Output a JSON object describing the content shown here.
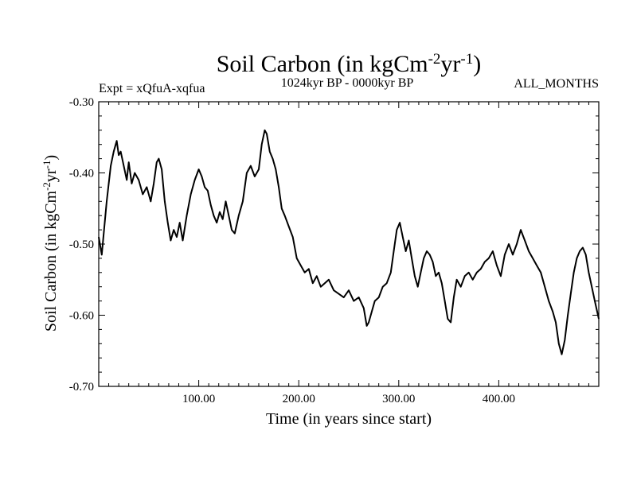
{
  "chart_data": {
    "type": "line",
    "title": {
      "base": "Soil Carbon (in kgCm",
      "sup1": "-2",
      "mid": "yr",
      "sup2": "-1",
      "end": ")"
    },
    "subtitle_left": "Expt = xQfuA-xqfua",
    "subtitle_center": "1024kyr BP - 0000kyr BP",
    "subtitle_right": "ALL_MONTHS",
    "xlabel": "Time (in years since start)",
    "ylabel": {
      "base": "Soil Carbon (in kgCm",
      "sup1": "-2",
      "mid": "yr",
      "sup2": "-1",
      "end": ")"
    },
    "xlim": [
      0,
      500
    ],
    "ylim": [
      -0.7,
      -0.3
    ],
    "x_ticks": [
      100,
      200,
      300,
      400
    ],
    "x_tick_labels": [
      "100.00",
      "200.00",
      "300.00",
      "400.00"
    ],
    "y_ticks": [
      -0.3,
      -0.4,
      -0.5,
      -0.6,
      -0.7
    ],
    "y_tick_labels": [
      "-0.30",
      "-0.40",
      "-0.50",
      "-0.60",
      "-0.70"
    ],
    "series": [
      {
        "name": "Soil Carbon",
        "color": "#000000",
        "x": [
          0,
          3,
          8,
          12,
          15,
          18,
          20,
          22,
          25,
          28,
          30,
          33,
          36,
          40,
          44,
          48,
          52,
          55,
          58,
          60,
          63,
          66,
          69,
          72,
          75,
          78,
          81,
          84,
          88,
          92,
          96,
          100,
          103,
          106,
          109,
          112,
          115,
          118,
          121,
          124,
          127,
          130,
          133,
          136,
          140,
          144,
          148,
          152,
          156,
          160,
          163,
          166,
          168,
          171,
          174,
          177,
          180,
          183,
          186,
          190,
          194,
          198,
          202,
          206,
          210,
          214,
          218,
          222,
          226,
          230,
          235,
          240,
          245,
          250,
          255,
          260,
          265,
          268,
          270,
          273,
          276,
          280,
          284,
          288,
          292,
          295,
          298,
          301,
          304,
          307,
          310,
          313,
          316,
          319,
          322,
          325,
          328,
          331,
          334,
          337,
          340,
          343,
          346,
          349,
          352,
          355,
          358,
          362,
          366,
          370,
          374,
          378,
          382,
          386,
          390,
          394,
          398,
          402,
          406,
          410,
          414,
          418,
          422,
          426,
          430,
          434,
          438,
          442,
          446,
          450,
          454,
          457,
          460,
          463,
          466,
          469,
          472,
          475,
          478,
          481,
          484,
          487,
          490,
          493,
          496,
          500
        ],
        "y": [
          -0.49,
          -0.515,
          -0.44,
          -0.39,
          -0.37,
          -0.355,
          -0.375,
          -0.37,
          -0.39,
          -0.41,
          -0.385,
          -0.415,
          -0.4,
          -0.41,
          -0.43,
          -0.42,
          -0.44,
          -0.415,
          -0.385,
          -0.38,
          -0.395,
          -0.44,
          -0.47,
          -0.495,
          -0.48,
          -0.49,
          -0.47,
          -0.495,
          -0.46,
          -0.43,
          -0.41,
          -0.395,
          -0.405,
          -0.42,
          -0.425,
          -0.445,
          -0.46,
          -0.47,
          -0.455,
          -0.465,
          -0.44,
          -0.46,
          -0.48,
          -0.485,
          -0.46,
          -0.44,
          -0.4,
          -0.39,
          -0.405,
          -0.395,
          -0.36,
          -0.34,
          -0.345,
          -0.37,
          -0.38,
          -0.395,
          -0.42,
          -0.45,
          -0.46,
          -0.475,
          -0.49,
          -0.52,
          -0.53,
          -0.54,
          -0.535,
          -0.555,
          -0.545,
          -0.56,
          -0.555,
          -0.55,
          -0.565,
          -0.57,
          -0.575,
          -0.565,
          -0.58,
          -0.575,
          -0.59,
          -0.615,
          -0.61,
          -0.595,
          -0.58,
          -0.575,
          -0.56,
          -0.555,
          -0.54,
          -0.51,
          -0.48,
          -0.47,
          -0.49,
          -0.51,
          -0.495,
          -0.52,
          -0.545,
          -0.56,
          -0.54,
          -0.52,
          -0.51,
          -0.515,
          -0.525,
          -0.545,
          -0.54,
          -0.555,
          -0.58,
          -0.605,
          -0.61,
          -0.575,
          -0.55,
          -0.56,
          -0.545,
          -0.54,
          -0.55,
          -0.54,
          -0.535,
          -0.525,
          -0.52,
          -0.51,
          -0.53,
          -0.545,
          -0.515,
          -0.5,
          -0.515,
          -0.5,
          -0.48,
          -0.495,
          -0.51,
          -0.52,
          -0.53,
          -0.54,
          -0.56,
          -0.58,
          -0.595,
          -0.61,
          -0.64,
          -0.655,
          -0.635,
          -0.6,
          -0.57,
          -0.54,
          -0.52,
          -0.51,
          -0.505,
          -0.515,
          -0.54,
          -0.56,
          -0.58,
          -0.605
        ]
      }
    ]
  }
}
